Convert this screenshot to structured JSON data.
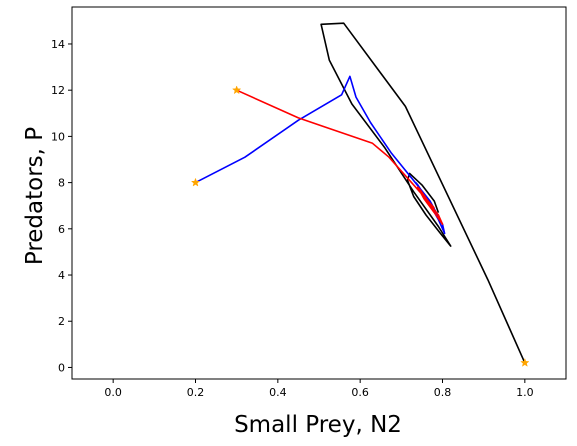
{
  "chart_data": {
    "type": "line",
    "xlabel": "Small Prey, N2",
    "ylabel": "Predators, P",
    "xlim": [
      -0.1,
      1.1
    ],
    "ylim": [
      -0.5,
      15.6
    ],
    "xticks": [
      0.0,
      0.2,
      0.4,
      0.6,
      0.8,
      1.0
    ],
    "yticks": [
      0,
      2,
      4,
      6,
      8,
      10,
      12,
      14
    ],
    "xtick_labels": [
      "0.0",
      "0.2",
      "0.4",
      "0.6",
      "0.8",
      "1.0"
    ],
    "ytick_labels": [
      "0",
      "2",
      "4",
      "6",
      "8",
      "10",
      "12",
      "14"
    ],
    "grid": false,
    "legend": false,
    "series": [
      {
        "color": "#000000",
        "start_marker": "star",
        "marker_color": "#ffa500",
        "points": [
          [
            1.0,
            0.2
          ],
          [
            0.91,
            3.8
          ],
          [
            0.71,
            11.3
          ],
          [
            0.56,
            14.9
          ],
          [
            0.505,
            14.85
          ],
          [
            0.525,
            13.3
          ],
          [
            0.58,
            11.4
          ],
          [
            0.66,
            9.5
          ],
          [
            0.73,
            7.6
          ],
          [
            0.79,
            6.1
          ],
          [
            0.82,
            5.25
          ],
          [
            0.795,
            5.8
          ],
          [
            0.76,
            6.6
          ],
          [
            0.73,
            7.4
          ],
          [
            0.715,
            8.1
          ],
          [
            0.72,
            8.4
          ],
          [
            0.75,
            7.9
          ],
          [
            0.78,
            7.2
          ],
          [
            0.79,
            6.7
          ]
        ]
      },
      {
        "color": "#0000ff",
        "start_marker": "star",
        "marker_color": "#ffa500",
        "points": [
          [
            0.2,
            8.0
          ],
          [
            0.32,
            9.1
          ],
          [
            0.45,
            10.7
          ],
          [
            0.555,
            11.8
          ],
          [
            0.575,
            12.6
          ],
          [
            0.59,
            11.7
          ],
          [
            0.625,
            10.6
          ],
          [
            0.675,
            9.3
          ],
          [
            0.725,
            8.2
          ],
          [
            0.77,
            7.2
          ],
          [
            0.8,
            6.2
          ],
          [
            0.805,
            5.8
          ],
          [
            0.79,
            6.4
          ],
          [
            0.765,
            7.2
          ],
          [
            0.74,
            7.9
          ],
          [
            0.735,
            8.0
          ],
          [
            0.75,
            7.6
          ],
          [
            0.775,
            7.0
          ]
        ]
      },
      {
        "color": "#ff0000",
        "start_marker": "star",
        "marker_color": "#ffa500",
        "points": [
          [
            0.3,
            12.0
          ],
          [
            0.45,
            10.8
          ],
          [
            0.63,
            9.7
          ],
          [
            0.67,
            9.1
          ],
          [
            0.71,
            8.3
          ],
          [
            0.75,
            7.5
          ],
          [
            0.79,
            6.6
          ],
          [
            0.8,
            6.2
          ],
          [
            0.78,
            6.7
          ],
          [
            0.755,
            7.3
          ],
          [
            0.74,
            7.8
          ],
          [
            0.745,
            7.7
          ],
          [
            0.765,
            7.2
          ],
          [
            0.78,
            6.9
          ]
        ]
      }
    ]
  }
}
